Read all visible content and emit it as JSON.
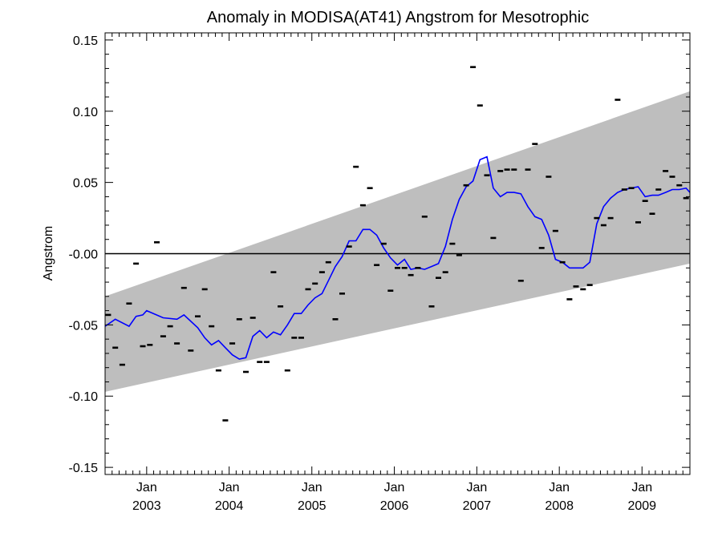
{
  "chart_data": {
    "type": "scatter",
    "title": "Anomaly in MODISA(AT41) Angstrom for Mesotrophic",
    "xlabel": "",
    "ylabel": "Angstrom",
    "xlim": [
      "2002-07-01",
      "2009-08-01"
    ],
    "ylim": [
      -0.155,
      0.155
    ],
    "y_ticks": [
      {
        "value": -0.15,
        "label": "-0.15"
      },
      {
        "value": -0.1,
        "label": "-0.10"
      },
      {
        "value": -0.05,
        "label": "-0.05"
      },
      {
        "value": 0.0,
        "label": "-0.00"
      },
      {
        "value": 0.05,
        "label": "0.05"
      },
      {
        "value": 0.1,
        "label": "0.10"
      },
      {
        "value": 0.15,
        "label": "0.15"
      }
    ],
    "x_ticks": [
      {
        "date": "2003-01-01",
        "month": "Jan",
        "year": "2003"
      },
      {
        "date": "2004-01-01",
        "month": "Jan",
        "year": "2004"
      },
      {
        "date": "2005-01-01",
        "month": "Jan",
        "year": "2005"
      },
      {
        "date": "2006-01-01",
        "month": "Jan",
        "year": "2006"
      },
      {
        "date": "2007-01-01",
        "month": "Jan",
        "year": "2007"
      },
      {
        "date": "2008-01-01",
        "month": "Jan",
        "year": "2008"
      },
      {
        "date": "2009-01-01",
        "month": "Jan",
        "year": "2009"
      }
    ],
    "zero_line": 0.0,
    "confidence_band": {
      "color": "#bebebe",
      "start": {
        "date": "2002-07-01",
        "lower": -0.097,
        "upper": -0.03
      },
      "end": {
        "date": "2009-08-01",
        "lower": -0.007,
        "upper": 0.114
      }
    },
    "scatter_points": [
      {
        "date": "2002-07-15",
        "value": -0.043
      },
      {
        "date": "2002-08-15",
        "value": -0.066
      },
      {
        "date": "2002-09-15",
        "value": -0.078
      },
      {
        "date": "2002-10-15",
        "value": -0.035
      },
      {
        "date": "2002-11-15",
        "value": -0.007
      },
      {
        "date": "2002-12-15",
        "value": -0.065
      },
      {
        "date": "2003-01-15",
        "value": -0.064
      },
      {
        "date": "2003-02-15",
        "value": 0.008
      },
      {
        "date": "2003-03-15",
        "value": -0.058
      },
      {
        "date": "2003-04-15",
        "value": -0.051
      },
      {
        "date": "2003-05-15",
        "value": -0.063
      },
      {
        "date": "2003-06-15",
        "value": -0.024
      },
      {
        "date": "2003-07-15",
        "value": -0.068
      },
      {
        "date": "2003-08-15",
        "value": -0.044
      },
      {
        "date": "2003-09-15",
        "value": -0.025
      },
      {
        "date": "2003-10-15",
        "value": -0.051
      },
      {
        "date": "2003-11-15",
        "value": -0.082
      },
      {
        "date": "2003-12-15",
        "value": -0.117
      },
      {
        "date": "2004-01-15",
        "value": -0.063
      },
      {
        "date": "2004-02-15",
        "value": -0.046
      },
      {
        "date": "2004-03-15",
        "value": -0.083
      },
      {
        "date": "2004-04-15",
        "value": -0.045
      },
      {
        "date": "2004-05-15",
        "value": -0.076
      },
      {
        "date": "2004-06-15",
        "value": -0.076
      },
      {
        "date": "2004-07-15",
        "value": -0.013
      },
      {
        "date": "2004-08-15",
        "value": -0.037
      },
      {
        "date": "2004-09-15",
        "value": -0.082
      },
      {
        "date": "2004-10-15",
        "value": -0.059
      },
      {
        "date": "2004-11-15",
        "value": -0.059
      },
      {
        "date": "2004-12-15",
        "value": -0.025
      },
      {
        "date": "2005-01-15",
        "value": -0.021
      },
      {
        "date": "2005-02-15",
        "value": -0.013
      },
      {
        "date": "2005-03-15",
        "value": -0.006
      },
      {
        "date": "2005-04-15",
        "value": -0.046
      },
      {
        "date": "2005-05-15",
        "value": -0.028
      },
      {
        "date": "2005-06-15",
        "value": 0.005
      },
      {
        "date": "2005-07-15",
        "value": 0.061
      },
      {
        "date": "2005-08-15",
        "value": 0.034
      },
      {
        "date": "2005-09-15",
        "value": 0.046
      },
      {
        "date": "2005-10-15",
        "value": -0.008
      },
      {
        "date": "2005-11-15",
        "value": 0.007
      },
      {
        "date": "2005-12-15",
        "value": -0.026
      },
      {
        "date": "2006-01-15",
        "value": -0.01
      },
      {
        "date": "2006-02-15",
        "value": -0.01
      },
      {
        "date": "2006-03-15",
        "value": -0.015
      },
      {
        "date": "2006-04-15",
        "value": -0.01
      },
      {
        "date": "2006-05-15",
        "value": 0.026
      },
      {
        "date": "2006-06-15",
        "value": -0.037
      },
      {
        "date": "2006-07-15",
        "value": -0.017
      },
      {
        "date": "2006-08-15",
        "value": -0.013
      },
      {
        "date": "2006-09-15",
        "value": 0.007
      },
      {
        "date": "2006-10-15",
        "value": -0.001
      },
      {
        "date": "2006-11-15",
        "value": 0.048
      },
      {
        "date": "2006-12-15",
        "value": 0.131
      },
      {
        "date": "2007-01-15",
        "value": 0.104
      },
      {
        "date": "2007-02-15",
        "value": 0.055
      },
      {
        "date": "2007-03-15",
        "value": 0.011
      },
      {
        "date": "2007-04-15",
        "value": 0.058
      },
      {
        "date": "2007-05-15",
        "value": 0.059
      },
      {
        "date": "2007-06-15",
        "value": 0.059
      },
      {
        "date": "2007-07-15",
        "value": -0.019
      },
      {
        "date": "2007-08-15",
        "value": 0.059
      },
      {
        "date": "2007-09-15",
        "value": 0.077
      },
      {
        "date": "2007-10-15",
        "value": 0.004
      },
      {
        "date": "2007-11-15",
        "value": 0.054
      },
      {
        "date": "2007-12-15",
        "value": 0.016
      },
      {
        "date": "2008-01-15",
        "value": -0.006
      },
      {
        "date": "2008-02-15",
        "value": -0.032
      },
      {
        "date": "2008-03-15",
        "value": -0.023
      },
      {
        "date": "2008-04-15",
        "value": -0.025
      },
      {
        "date": "2008-05-15",
        "value": -0.022
      },
      {
        "date": "2008-06-15",
        "value": 0.025
      },
      {
        "date": "2008-07-15",
        "value": 0.02
      },
      {
        "date": "2008-08-15",
        "value": 0.025
      },
      {
        "date": "2008-09-15",
        "value": 0.108
      },
      {
        "date": "2008-10-15",
        "value": 0.045
      },
      {
        "date": "2008-11-15",
        "value": 0.046
      },
      {
        "date": "2008-12-15",
        "value": 0.022
      },
      {
        "date": "2009-01-15",
        "value": 0.037
      },
      {
        "date": "2009-02-15",
        "value": 0.028
      },
      {
        "date": "2009-03-15",
        "value": 0.045
      },
      {
        "date": "2009-04-15",
        "value": 0.058
      },
      {
        "date": "2009-05-15",
        "value": 0.054
      },
      {
        "date": "2009-06-15",
        "value": 0.048
      },
      {
        "date": "2009-07-15",
        "value": 0.039
      }
    ],
    "smoothed_line": {
      "color": "#0000ff",
      "points": [
        {
          "date": "2002-07-01",
          "value": -0.051
        },
        {
          "date": "2002-08-15",
          "value": -0.046
        },
        {
          "date": "2002-10-15",
          "value": -0.051
        },
        {
          "date": "2002-11-15",
          "value": -0.044
        },
        {
          "date": "2002-12-15",
          "value": -0.043
        },
        {
          "date": "2003-01-01",
          "value": -0.04
        },
        {
          "date": "2003-03-15",
          "value": -0.045
        },
        {
          "date": "2003-05-15",
          "value": -0.046
        },
        {
          "date": "2003-06-15",
          "value": -0.043
        },
        {
          "date": "2003-08-15",
          "value": -0.052
        },
        {
          "date": "2003-09-15",
          "value": -0.059
        },
        {
          "date": "2003-10-15",
          "value": -0.064
        },
        {
          "date": "2003-11-15",
          "value": -0.061
        },
        {
          "date": "2003-12-15",
          "value": -0.066
        },
        {
          "date": "2004-01-15",
          "value": -0.071
        },
        {
          "date": "2004-02-15",
          "value": -0.074
        },
        {
          "date": "2004-03-15",
          "value": -0.073
        },
        {
          "date": "2004-04-15",
          "value": -0.058
        },
        {
          "date": "2004-05-15",
          "value": -0.054
        },
        {
          "date": "2004-06-15",
          "value": -0.059
        },
        {
          "date": "2004-07-15",
          "value": -0.055
        },
        {
          "date": "2004-08-15",
          "value": -0.057
        },
        {
          "date": "2004-09-15",
          "value": -0.05
        },
        {
          "date": "2004-10-15",
          "value": -0.042
        },
        {
          "date": "2004-11-15",
          "value": -0.042
        },
        {
          "date": "2004-12-15",
          "value": -0.036
        },
        {
          "date": "2005-01-15",
          "value": -0.031
        },
        {
          "date": "2005-02-15",
          "value": -0.028
        },
        {
          "date": "2005-03-15",
          "value": -0.019
        },
        {
          "date": "2005-04-15",
          "value": -0.009
        },
        {
          "date": "2005-05-15",
          "value": -0.002
        },
        {
          "date": "2005-06-15",
          "value": 0.009
        },
        {
          "date": "2005-07-15",
          "value": 0.009
        },
        {
          "date": "2005-08-15",
          "value": 0.017
        },
        {
          "date": "2005-09-15",
          "value": 0.017
        },
        {
          "date": "2005-10-15",
          "value": 0.013
        },
        {
          "date": "2005-11-15",
          "value": 0.004
        },
        {
          "date": "2005-12-15",
          "value": -0.003
        },
        {
          "date": "2006-01-15",
          "value": -0.008
        },
        {
          "date": "2006-02-15",
          "value": -0.004
        },
        {
          "date": "2006-03-15",
          "value": -0.011
        },
        {
          "date": "2006-04-15",
          "value": -0.01
        },
        {
          "date": "2006-05-15",
          "value": -0.011
        },
        {
          "date": "2006-06-15",
          "value": -0.009
        },
        {
          "date": "2006-07-15",
          "value": -0.007
        },
        {
          "date": "2006-08-15",
          "value": 0.005
        },
        {
          "date": "2006-09-15",
          "value": 0.024
        },
        {
          "date": "2006-10-15",
          "value": 0.038
        },
        {
          "date": "2006-11-15",
          "value": 0.047
        },
        {
          "date": "2006-12-15",
          "value": 0.051
        },
        {
          "date": "2007-01-15",
          "value": 0.066
        },
        {
          "date": "2007-02-15",
          "value": 0.068
        },
        {
          "date": "2007-03-15",
          "value": 0.046
        },
        {
          "date": "2007-04-15",
          "value": 0.04
        },
        {
          "date": "2007-05-15",
          "value": 0.043
        },
        {
          "date": "2007-06-15",
          "value": 0.043
        },
        {
          "date": "2007-07-15",
          "value": 0.042
        },
        {
          "date": "2007-08-15",
          "value": 0.033
        },
        {
          "date": "2007-09-15",
          "value": 0.026
        },
        {
          "date": "2007-10-15",
          "value": 0.024
        },
        {
          "date": "2007-11-15",
          "value": 0.013
        },
        {
          "date": "2007-12-15",
          "value": -0.004
        },
        {
          "date": "2008-01-15",
          "value": -0.006
        },
        {
          "date": "2008-02-15",
          "value": -0.01
        },
        {
          "date": "2008-03-15",
          "value": -0.01
        },
        {
          "date": "2008-04-15",
          "value": -0.01
        },
        {
          "date": "2008-05-15",
          "value": -0.006
        },
        {
          "date": "2008-06-15",
          "value": 0.021
        },
        {
          "date": "2008-07-15",
          "value": 0.033
        },
        {
          "date": "2008-08-15",
          "value": 0.039
        },
        {
          "date": "2008-09-15",
          "value": 0.043
        },
        {
          "date": "2008-10-15",
          "value": 0.045
        },
        {
          "date": "2008-11-15",
          "value": 0.046
        },
        {
          "date": "2008-12-15",
          "value": 0.047
        },
        {
          "date": "2009-01-15",
          "value": 0.04
        },
        {
          "date": "2009-02-15",
          "value": 0.041
        },
        {
          "date": "2009-03-15",
          "value": 0.041
        },
        {
          "date": "2009-04-15",
          "value": 0.043
        },
        {
          "date": "2009-05-15",
          "value": 0.045
        },
        {
          "date": "2009-06-15",
          "value": 0.045
        },
        {
          "date": "2009-07-15",
          "value": 0.046
        },
        {
          "date": "2009-08-01",
          "value": 0.043
        }
      ]
    },
    "grid": false,
    "legend": "none"
  }
}
